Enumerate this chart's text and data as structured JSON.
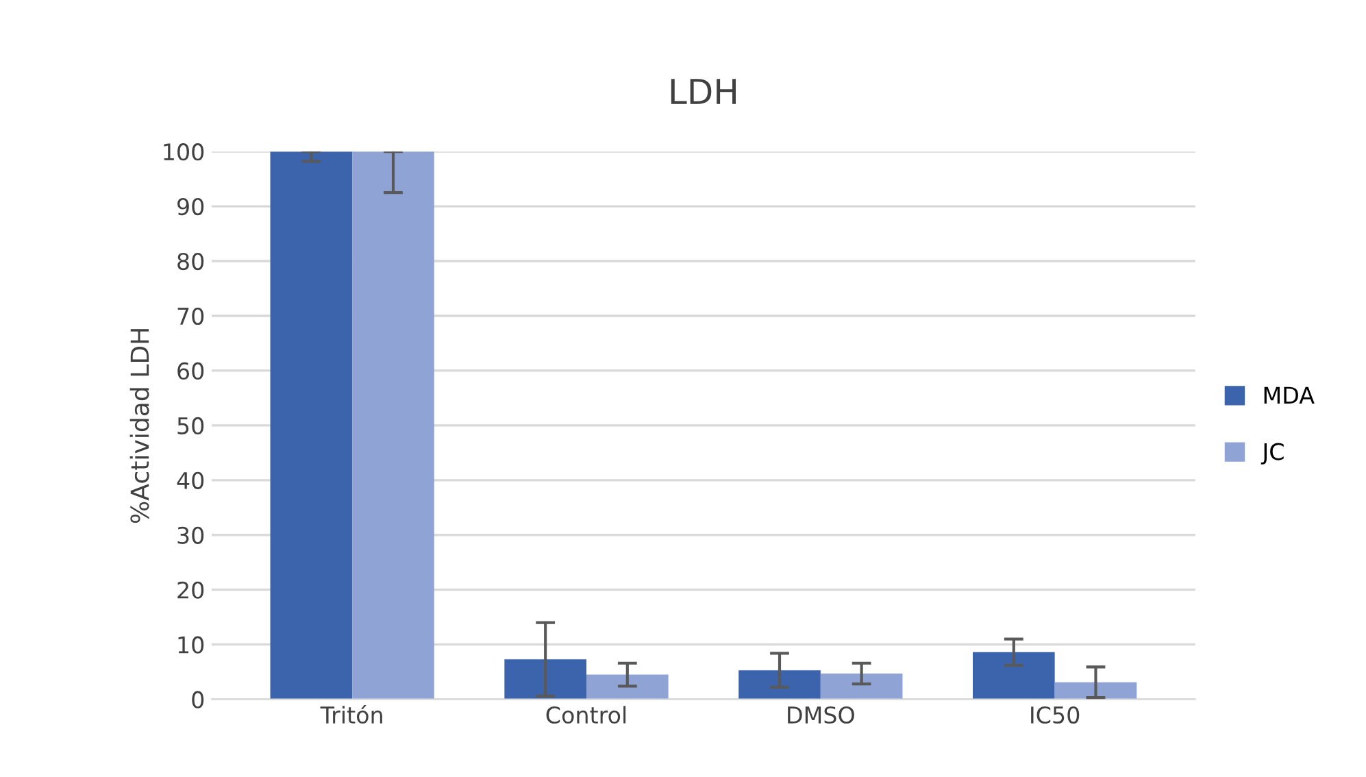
{
  "chart_data": {
    "type": "bar",
    "title": "LDH",
    "ylabel": "%Actividad LDH",
    "categories": [
      "Tritón",
      "Control",
      "DMSO",
      "IC50"
    ],
    "series": [
      {
        "name": "MDA",
        "color": "#3c64ac",
        "values": [
          100,
          7.3,
          5.3,
          8.6
        ],
        "errors": [
          [
            98.2,
            100
          ],
          6.7,
          3.1,
          2.4
        ]
      },
      {
        "name": "JC",
        "color": "#8fa3d4",
        "values": [
          100,
          4.5,
          4.7,
          3.1
        ],
        "errors": [
          [
            92.5,
            100
          ],
          2.1,
          1.9,
          2.8
        ]
      }
    ],
    "ylim": [
      0,
      100
    ],
    "yticks": [
      0,
      10,
      20,
      30,
      40,
      50,
      60,
      70,
      80,
      90,
      100
    ],
    "grid": "y",
    "legend": "right"
  }
}
